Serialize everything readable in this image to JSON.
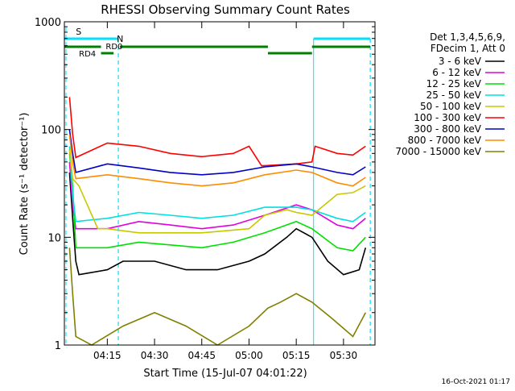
{
  "chart_data": {
    "type": "line",
    "title": "RHESSI Observing Summary Count Rates",
    "xlabel": "Start Time (15-Jul-07 04:01:22)",
    "ylabel": "Count Rate (s⁻¹ detector⁻¹)",
    "y_scale": "log",
    "ylim": [
      1,
      1000
    ],
    "xlim": [
      "04:01:22",
      "05:40:00"
    ],
    "x_ticks": [
      "04:15",
      "04:30",
      "04:45",
      "05:00",
      "05:15",
      "05:30"
    ],
    "y_ticks": [
      "1",
      "10",
      "100",
      "1000"
    ],
    "legend_position": "right",
    "legend_header": [
      "Det 1,3,4,5,6,9,",
      "FDecim 1, Att 0"
    ],
    "footer_date": "16-Oct-2021 01:17",
    "flag_labels": {
      "saa": "S",
      "night": "N",
      "rd4": "RD4",
      "rd0": "RD0"
    },
    "flag_colors": {
      "saa": "#ff9000",
      "night": "#00e0ff",
      "decim": "#008000"
    },
    "series": [
      {
        "name": "3 - 6 keV",
        "color": "#000000",
        "points": [
          [
            "04:03",
            40
          ],
          [
            "04:04",
            15
          ],
          [
            "04:05",
            6
          ],
          [
            "04:06",
            4.5
          ],
          [
            "04:15",
            5
          ],
          [
            "04:20",
            6
          ],
          [
            "04:30",
            6
          ],
          [
            "04:40",
            5
          ],
          [
            "04:50",
            5
          ],
          [
            "05:00",
            6
          ],
          [
            "05:05",
            7
          ],
          [
            "05:12",
            10
          ],
          [
            "05:15",
            12
          ],
          [
            "05:20",
            10
          ],
          [
            "05:25",
            6
          ],
          [
            "05:30",
            4.5
          ],
          [
            "05:35",
            5
          ],
          [
            "05:37",
            8
          ]
        ]
      },
      {
        "name": "6 - 12 keV",
        "color": "#e000e0",
        "points": [
          [
            "04:03",
            50
          ],
          [
            "04:04",
            20
          ],
          [
            "04:05",
            12
          ],
          [
            "04:15",
            12
          ],
          [
            "04:25",
            14
          ],
          [
            "04:35",
            13
          ],
          [
            "04:45",
            12
          ],
          [
            "04:55",
            13
          ],
          [
            "05:05",
            16
          ],
          [
            "05:15",
            20
          ],
          [
            "05:20",
            18
          ],
          [
            "05:28",
            13
          ],
          [
            "05:33",
            12
          ],
          [
            "05:37",
            15
          ]
        ]
      },
      {
        "name": "12 - 25 keV",
        "color": "#00e000",
        "points": [
          [
            "04:03",
            60
          ],
          [
            "04:04",
            30
          ],
          [
            "04:05",
            8
          ],
          [
            "04:15",
            8
          ],
          [
            "04:25",
            9
          ],
          [
            "04:35",
            8.5
          ],
          [
            "04:45",
            8
          ],
          [
            "04:55",
            9
          ],
          [
            "05:05",
            11
          ],
          [
            "05:15",
            14
          ],
          [
            "05:20",
            12
          ],
          [
            "05:28",
            8
          ],
          [
            "05:33",
            7.5
          ],
          [
            "05:37",
            10
          ]
        ]
      },
      {
        "name": "25 - 50 keV",
        "color": "#00e0e0",
        "points": [
          [
            "04:03",
            70
          ],
          [
            "04:04",
            25
          ],
          [
            "04:05",
            14
          ],
          [
            "04:15",
            15
          ],
          [
            "04:25",
            17
          ],
          [
            "04:35",
            16
          ],
          [
            "04:45",
            15
          ],
          [
            "04:55",
            16
          ],
          [
            "05:05",
            19
          ],
          [
            "05:15",
            19
          ],
          [
            "05:20",
            18
          ],
          [
            "05:28",
            15
          ],
          [
            "05:33",
            14
          ],
          [
            "05:37",
            17
          ]
        ]
      },
      {
        "name": "50 - 100 keV",
        "color": "#c8c800",
        "points": [
          [
            "04:03",
            65
          ],
          [
            "04:04",
            35
          ],
          [
            "04:06",
            30
          ],
          [
            "04:12",
            12
          ],
          [
            "04:15",
            12
          ],
          [
            "04:25",
            11
          ],
          [
            "04:35",
            11
          ],
          [
            "04:45",
            11
          ],
          [
            "05:00",
            12
          ],
          [
            "05:05",
            16
          ],
          [
            "05:12",
            18
          ],
          [
            "05:15",
            17
          ],
          [
            "05:20",
            16
          ],
          [
            "05:28",
            25
          ],
          [
            "05:33",
            26
          ],
          [
            "05:37",
            30
          ]
        ]
      },
      {
        "name": "100 - 300 keV",
        "color": "#ff0000",
        "points": [
          [
            "04:03",
            200
          ],
          [
            "04:04",
            90
          ],
          [
            "04:05",
            55
          ],
          [
            "04:15",
            75
          ],
          [
            "04:25",
            70
          ],
          [
            "04:35",
            60
          ],
          [
            "04:45",
            56
          ],
          [
            "04:55",
            60
          ],
          [
            "05:00",
            70
          ],
          [
            "05:04",
            46
          ],
          [
            "05:15",
            48
          ],
          [
            "05:20",
            50
          ],
          [
            "05:21",
            70
          ],
          [
            "05:28",
            60
          ],
          [
            "05:33",
            58
          ],
          [
            "05:37",
            70
          ]
        ]
      },
      {
        "name": "300 - 800 keV",
        "color": "#0000c8",
        "points": [
          [
            "04:03",
            100
          ],
          [
            "04:04",
            60
          ],
          [
            "04:05",
            40
          ],
          [
            "04:15",
            48
          ],
          [
            "04:25",
            44
          ],
          [
            "04:35",
            40
          ],
          [
            "04:45",
            38
          ],
          [
            "04:55",
            40
          ],
          [
            "05:05",
            45
          ],
          [
            "05:15",
            48
          ],
          [
            "05:20",
            45
          ],
          [
            "05:28",
            40
          ],
          [
            "05:33",
            38
          ],
          [
            "05:37",
            45
          ]
        ]
      },
      {
        "name": "800 - 7000 keV",
        "color": "#ff8c00",
        "points": [
          [
            "04:03",
            90
          ],
          [
            "04:04",
            50
          ],
          [
            "04:05",
            35
          ],
          [
            "04:15",
            38
          ],
          [
            "04:25",
            35
          ],
          [
            "04:35",
            32
          ],
          [
            "04:45",
            30
          ],
          [
            "04:55",
            32
          ],
          [
            "05:05",
            38
          ],
          [
            "05:15",
            42
          ],
          [
            "05:20",
            40
          ],
          [
            "05:28",
            32
          ],
          [
            "05:33",
            30
          ],
          [
            "05:37",
            36
          ]
        ]
      },
      {
        "name": "7000 - 15000 keV",
        "color": "#808000",
        "points": [
          [
            "04:03",
            8
          ],
          [
            "04:04",
            3
          ],
          [
            "04:05",
            1.2
          ],
          [
            "04:10",
            1
          ],
          [
            "04:20",
            1.5
          ],
          [
            "04:30",
            2
          ],
          [
            "04:40",
            1.5
          ],
          [
            "04:50",
            1
          ],
          [
            "05:00",
            1.5
          ],
          [
            "05:06",
            2.2
          ],
          [
            "05:10",
            2.5
          ],
          [
            "05:15",
            3
          ],
          [
            "05:20",
            2.5
          ],
          [
            "05:26",
            1.8
          ],
          [
            "05:33",
            1.2
          ],
          [
            "05:37",
            2
          ]
        ]
      }
    ],
    "flags": {
      "saa": [
        [
          "04:01:22",
          "04:03:00"
        ]
      ],
      "night": [
        [
          "04:01:22",
          "04:18:30"
        ],
        [
          "05:20:30",
          "05:38:30"
        ]
      ],
      "decim": [
        [
          "04:01:22",
          "04:13:00"
        ],
        [
          "04:13:00",
          "04:17:00"
        ],
        [
          "04:19:00",
          "05:06:00"
        ],
        [
          "05:06:00",
          "05:20:00"
        ],
        [
          "05:20:00",
          "05:38:30"
        ]
      ]
    }
  }
}
